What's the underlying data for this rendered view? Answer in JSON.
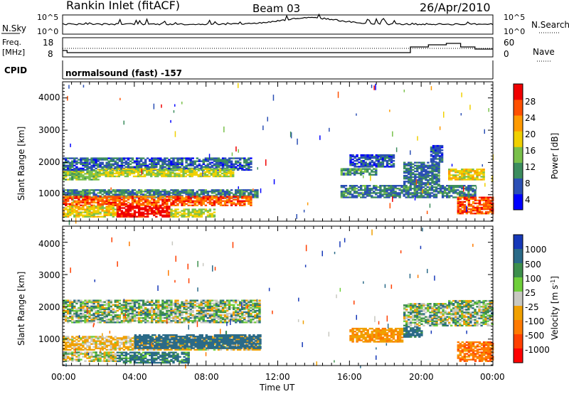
{
  "header": {
    "title": "Rankin Inlet (fitACF)",
    "beam": "Beam 03",
    "date": "26/Apr/2010"
  },
  "panels": {
    "nsky": {
      "label": "N.Sky",
      "ticks_left": [
        "10^5",
        "10^0"
      ],
      "right_label": "N.Search",
      "ticks_right": [
        "10^5",
        "10^0"
      ]
    },
    "freq": {
      "label": "Freq.",
      "unit": "[MHz]",
      "ticks_left": [
        "18",
        "8"
      ],
      "right_label": "Nave",
      "ticks_right": [
        "60",
        "0"
      ]
    },
    "cpid": {
      "label": "CPID",
      "value": "normalsound (fast) -157"
    }
  },
  "x_axis": {
    "label": "Time UT",
    "ticks": [
      "00:00",
      "04:00",
      "08:00",
      "12:00",
      "16:00",
      "20:00",
      "00:00"
    ]
  },
  "y_axis": {
    "label": "Slant Range [km]",
    "ticks": [
      "1000",
      "2000",
      "3000",
      "4000"
    ]
  },
  "power_colorbar": {
    "title": "Power [dB]",
    "ticks": [
      "4",
      "8",
      "12",
      "16",
      "20",
      "24",
      "28"
    ],
    "colors": [
      "#0000ff",
      "#2b4fb5",
      "#3c8d5e",
      "#79c04a",
      "#f0d000",
      "#ff9a00",
      "#ff5000",
      "#f00000"
    ]
  },
  "velocity_colorbar": {
    "title": "Velocity [m s^-1]",
    "ticks": [
      "1000",
      "500",
      "100",
      "25",
      "-25",
      "-100",
      "-500",
      "-1000"
    ],
    "colors": [
      "#1638b8",
      "#2a6a88",
      "#3d8f4c",
      "#6fcf3a",
      "#c8c8c0",
      "#f0a000",
      "#ff7a00",
      "#ff4000",
      "#ff0000"
    ]
  },
  "chart_data": [
    {
      "type": "heatmap",
      "title": "Power",
      "xlabel": "Time UT",
      "ylabel": "Slant Range [km]",
      "xlim": [
        0,
        24
      ],
      "ylim": [
        180,
        4500
      ],
      "colorbar": {
        "label": "Power [dB]",
        "range": [
          0,
          32
        ]
      },
      "echo_bands": [
        {
          "t": [
            0.0,
            2.0
          ],
          "r": [
            1450,
            1800
          ],
          "value": 14
        },
        {
          "t": [
            0.0,
            10.5
          ],
          "r": [
            1750,
            2150
          ],
          "value": 7
        },
        {
          "t": [
            2.0,
            9.5
          ],
          "r": [
            1550,
            1800
          ],
          "value": 16
        },
        {
          "t": [
            0.0,
            10.8
          ],
          "r": [
            900,
            1150
          ],
          "value": 9
        },
        {
          "t": [
            0.0,
            10.5
          ],
          "r": [
            650,
            950
          ],
          "value": 26
        },
        {
          "t": [
            3.0,
            6.0
          ],
          "r": [
            300,
            650
          ],
          "value": 31
        },
        {
          "t": [
            0.0,
            3.0
          ],
          "r": [
            300,
            650
          ],
          "value": 18
        },
        {
          "t": [
            6.0,
            8.5
          ],
          "r": [
            300,
            550
          ],
          "value": 16
        },
        {
          "t": [
            15.5,
            17.5
          ],
          "r": [
            1600,
            1800
          ],
          "value": 10
        },
        {
          "t": [
            16.0,
            18.5
          ],
          "r": [
            1850,
            2250
          ],
          "value": 6
        },
        {
          "t": [
            15.5,
            23.0
          ],
          "r": [
            900,
            1300
          ],
          "value": 9
        },
        {
          "t": [
            19.0,
            21.0
          ],
          "r": [
            1300,
            2000
          ],
          "value": 8
        },
        {
          "t": [
            20.5,
            21.2
          ],
          "r": [
            2000,
            2500
          ],
          "value": 6
        },
        {
          "t": [
            21.5,
            23.5
          ],
          "r": [
            1450,
            1800
          ],
          "value": 18
        },
        {
          "t": [
            22.0,
            24.0
          ],
          "r": [
            400,
            900
          ],
          "value": 26
        }
      ]
    },
    {
      "type": "heatmap",
      "title": "Velocity",
      "xlabel": "Time UT",
      "ylabel": "Slant Range [km]",
      "xlim": [
        0,
        24
      ],
      "ylim": [
        180,
        4500
      ],
      "colorbar": {
        "label": "Velocity [m s^-1]",
        "range": [
          -1000,
          1000
        ]
      },
      "echo_bands": [
        {
          "t": [
            0.0,
            11.0
          ],
          "r": [
            1500,
            2200
          ],
          "value": 0
        },
        {
          "t": [
            0.0,
            11.0
          ],
          "r": [
            650,
            1100
          ],
          "value": -150
        },
        {
          "t": [
            4.0,
            11.0
          ],
          "r": [
            700,
            1150
          ],
          "value": 250
        },
        {
          "t": [
            3.0,
            7.0
          ],
          "r": [
            250,
            600
          ],
          "value": 150
        },
        {
          "t": [
            0.0,
            3.0
          ],
          "r": [
            300,
            600
          ],
          "value": -60
        },
        {
          "t": [
            16.0,
            19.0
          ],
          "r": [
            900,
            1350
          ],
          "value": -250
        },
        {
          "t": [
            19.0,
            20.0
          ],
          "r": [
            1050,
            1400
          ],
          "value": 200
        },
        {
          "t": [
            19.0,
            21.5
          ],
          "r": [
            1400,
            2100
          ],
          "value": 0
        },
        {
          "t": [
            21.5,
            24.0
          ],
          "r": [
            1400,
            2200
          ],
          "value": 0
        },
        {
          "t": [
            22.0,
            24.0
          ],
          "r": [
            300,
            900
          ],
          "value": -400
        }
      ]
    }
  ]
}
